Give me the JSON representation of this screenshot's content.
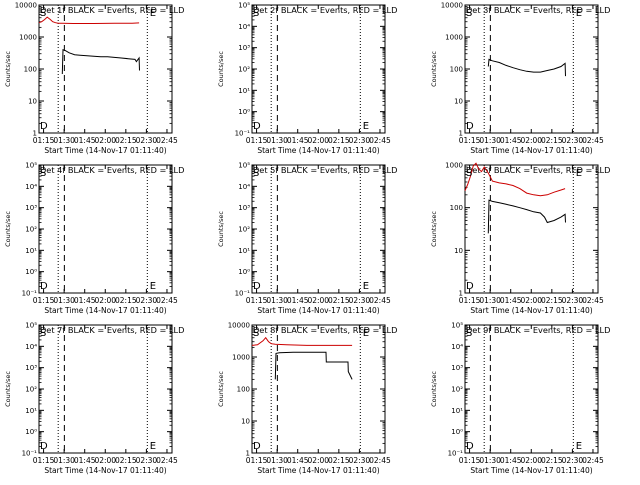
{
  "figure": {
    "xlabel": "Start Time (14-Nov-17 01:11:40)",
    "ylabel": "Counts/sec",
    "x_tick_labels": [
      "01:15",
      "01:30",
      "01:45",
      "02:00",
      "02:15",
      "02:30",
      "02:45"
    ],
    "colors": {
      "events": "#000000",
      "lld": "#cc0000"
    }
  },
  "chart_data": [
    {
      "type": "line",
      "title": "Det 1f BLACK = Events, RED = LLD",
      "x_unit": "minutes after 01:11:40",
      "xlim": [
        0,
        97
      ],
      "yscale": "log",
      "ylim": [
        1,
        10000
      ],
      "y_tick_labels": [
        "1",
        "10",
        "100",
        "1000",
        "10000"
      ],
      "markers": {
        "S": 0,
        "D": 14,
        "E": 80
      },
      "series": [
        {
          "name": "LLD",
          "color": "#cc0000",
          "x": [
            0,
            2,
            4,
            6,
            8,
            10,
            12,
            14,
            17,
            25,
            40,
            55,
            68,
            73
          ],
          "y": [
            2800,
            3000,
            3500,
            4200,
            3600,
            3000,
            2800,
            2700,
            2700,
            2650,
            2650,
            2700,
            2700,
            2750
          ]
        },
        {
          "name": "Events",
          "color": "#000000",
          "x": [
            17,
            17.5,
            19,
            22,
            26,
            30,
            35,
            40,
            45,
            50,
            55,
            60,
            65,
            70,
            71,
            73,
            73.3
          ],
          "y": [
            70,
            400,
            380,
            320,
            280,
            270,
            260,
            250,
            240,
            240,
            230,
            220,
            210,
            200,
            170,
            220,
            90
          ]
        }
      ]
    },
    {
      "type": "line",
      "title": "Det 2f BLACK = Events, RED = LLD",
      "x_unit": "minutes after 01:11:40",
      "xlim": [
        0,
        97
      ],
      "yscale": "log",
      "ylim": [
        0.1,
        100000
      ],
      "y_tick_labels": [
        "10⁻¹",
        "10⁰",
        "10¹",
        "10²",
        "10³",
        "10⁴",
        "10⁵"
      ],
      "markers": {
        "S": 0,
        "D": 14,
        "E": 80
      },
      "series": []
    },
    {
      "type": "line",
      "title": "Det 3f BLACK = Events, RED = LLD",
      "x_unit": "minutes after 01:11:40",
      "xlim": [
        0,
        97
      ],
      "yscale": "log",
      "ylim": [
        1,
        10000
      ],
      "y_tick_labels": [
        "1",
        "10",
        "100",
        "1000",
        "10000"
      ],
      "markers": {
        "S": 0,
        "D": 14,
        "E": 80
      },
      "series": [
        {
          "name": "Events",
          "color": "#000000",
          "x": [
            17,
            17.5,
            20,
            25,
            30,
            35,
            40,
            45,
            50,
            55,
            60,
            65,
            70,
            73,
            73.3
          ],
          "y": [
            120,
            200,
            180,
            160,
            130,
            110,
            95,
            85,
            80,
            80,
            90,
            100,
            120,
            150,
            60
          ]
        }
      ]
    },
    {
      "type": "line",
      "title": "Det 4f BLACK = Events, RED = LLD",
      "x_unit": "minutes after 01:11:40",
      "xlim": [
        0,
        97
      ],
      "yscale": "log",
      "ylim": [
        0.1,
        100000
      ],
      "y_tick_labels": [
        "10⁻¹",
        "10⁰",
        "10¹",
        "10²",
        "10³",
        "10⁴",
        "10⁵"
      ],
      "markers": {
        "S": 0,
        "D": 14,
        "E": 80
      },
      "series": []
    },
    {
      "type": "line",
      "title": "Det 5f BLACK = Events, RED = LLD",
      "x_unit": "minutes after 01:11:40",
      "xlim": [
        0,
        97
      ],
      "yscale": "log",
      "ylim": [
        0.1,
        100000
      ],
      "y_tick_labels": [
        "10⁻¹",
        "10⁰",
        "10¹",
        "10²",
        "10³",
        "10⁴",
        "10⁵"
      ],
      "markers": {
        "S": 0,
        "D": 14,
        "E": 80
      },
      "series": []
    },
    {
      "type": "line",
      "title": "Det 6f BLACK = Events, RED = LLD",
      "x_unit": "minutes after 01:11:40",
      "xlim": [
        0,
        97
      ],
      "yscale": "log",
      "ylim": [
        1,
        1000
      ],
      "y_tick_labels": [
        "1",
        "10",
        "100",
        "1000"
      ],
      "markers": {
        "S": 0,
        "D": 14,
        "E": 80
      },
      "series": [
        {
          "name": "LLD",
          "color": "#cc0000",
          "x": [
            0,
            2,
            4,
            6,
            8,
            10,
            12,
            14,
            17,
            20,
            25,
            30,
            35,
            40,
            45,
            50,
            55,
            60,
            65,
            70,
            73
          ],
          "y": [
            250,
            350,
            550,
            950,
            1100,
            800,
            700,
            900,
            650,
            420,
            380,
            360,
            330,
            280,
            220,
            200,
            190,
            200,
            230,
            260,
            280
          ]
        },
        {
          "name": "Events",
          "color": "#000000",
          "x": [
            17,
            17.5,
            20,
            25,
            30,
            35,
            40,
            45,
            50,
            55,
            58,
            60,
            65,
            70,
            73,
            73.3
          ],
          "y": [
            25,
            150,
            140,
            130,
            120,
            110,
            100,
            90,
            80,
            75,
            60,
            45,
            50,
            60,
            70,
            45
          ]
        }
      ]
    },
    {
      "type": "line",
      "title": "Det 7f BLACK = Events, RED = LLD",
      "x_unit": "minutes after 01:11:40",
      "xlim": [
        0,
        97
      ],
      "yscale": "log",
      "ylim": [
        0.1,
        100000
      ],
      "y_tick_labels": [
        "10⁻¹",
        "10⁰",
        "10¹",
        "10²",
        "10³",
        "10⁴",
        "10⁵"
      ],
      "markers": {
        "S": 0,
        "D": 14,
        "E": 80
      },
      "series": []
    },
    {
      "type": "line",
      "title": "Det 8f BLACK = Events, RED = LLD",
      "x_unit": "minutes after 01:11:40",
      "xlim": [
        0,
        97
      ],
      "yscale": "log",
      "ylim": [
        1,
        10000
      ],
      "y_tick_labels": [
        "1",
        "10",
        "100",
        "1000",
        "10000"
      ],
      "markers": {
        "S": 0,
        "D": 14,
        "E": 80
      },
      "series": [
        {
          "name": "LLD",
          "color": "#cc0000",
          "x": [
            0,
            4,
            8,
            10,
            12,
            14,
            17,
            25,
            40,
            55,
            73
          ],
          "y": [
            2300,
            2400,
            3200,
            4000,
            3000,
            2600,
            2500,
            2400,
            2300,
            2300,
            2300
          ]
        },
        {
          "name": "Events",
          "color": "#000000",
          "x": [
            17,
            17.5,
            20,
            30,
            45,
            54,
            54.2,
            70,
            70.2,
            73
          ],
          "y": [
            200,
            1300,
            1350,
            1400,
            1400,
            1400,
            700,
            700,
            350,
            200
          ]
        }
      ]
    },
    {
      "type": "line",
      "title": "Det 9f BLACK = Events, RED = LLD",
      "x_unit": "minutes after 01:11:40",
      "xlim": [
        0,
        97
      ],
      "yscale": "log",
      "ylim": [
        0.1,
        100000
      ],
      "y_tick_labels": [
        "10⁻¹",
        "10⁰",
        "10¹",
        "10²",
        "10³",
        "10⁴",
        "10⁵"
      ],
      "markers": {
        "S": 0,
        "D": 14,
        "E": 80
      },
      "series": []
    }
  ]
}
